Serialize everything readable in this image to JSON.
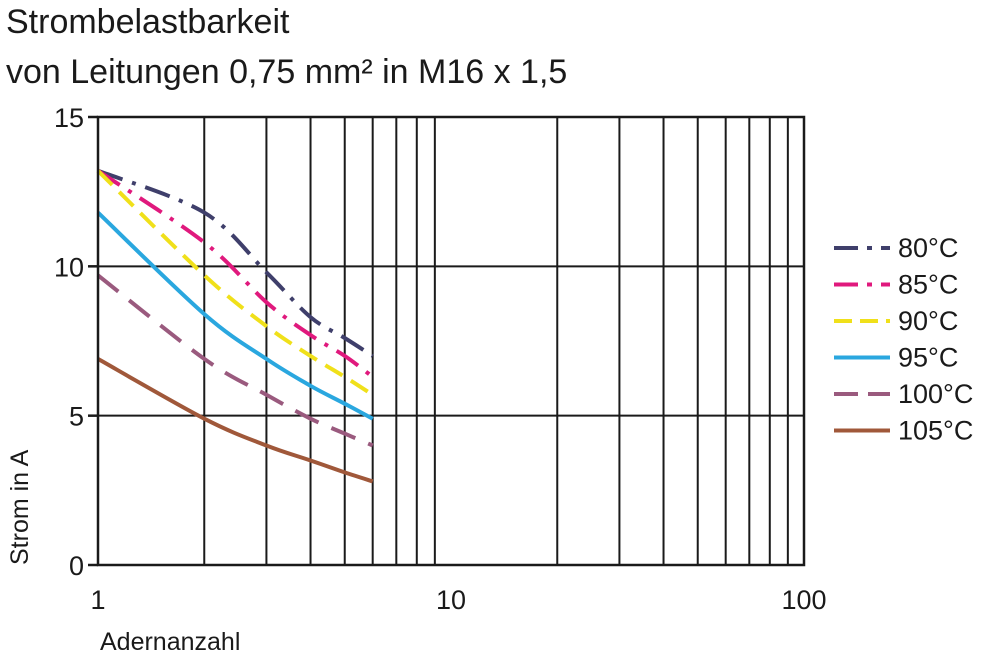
{
  "chart_data": {
    "type": "line",
    "title": "Strombelastbarkeit",
    "subtitle": "von Leitungen 0,75 mm² in M16 x 1,5",
    "xlabel": "Adernanzahl",
    "ylabel": "Strom in A",
    "xscale": "log",
    "xlim": [
      1,
      100
    ],
    "ylim": [
      0,
      15
    ],
    "xticks": [
      {
        "value": 1,
        "label": "1"
      },
      {
        "value": 10,
        "label": "10"
      },
      {
        "value": 100,
        "label": "100"
      }
    ],
    "yticks": [
      {
        "value": 0,
        "label": "0"
      },
      {
        "value": 5,
        "label": "5"
      },
      {
        "value": 10,
        "label": "10"
      },
      {
        "value": 15,
        "label": "15"
      }
    ],
    "grid": true,
    "legend_position": "right",
    "x": [
      1,
      2,
      3,
      4,
      5,
      6
    ],
    "series": [
      {
        "name": "80°C",
        "color": "#3f3f6b",
        "dash": "dash-dot",
        "values": [
          13.2,
          11.8,
          9.8,
          8.3,
          7.6,
          7.0
        ]
      },
      {
        "name": "85°C",
        "color": "#e0197d",
        "dash": "dash-dot",
        "values": [
          13.2,
          10.8,
          8.8,
          7.7,
          7.0,
          6.3
        ]
      },
      {
        "name": "90°C",
        "color": "#f0e01a",
        "dash": "dash",
        "values": [
          13.2,
          9.7,
          8.0,
          7.0,
          6.3,
          5.7
        ]
      },
      {
        "name": "95°C",
        "color": "#2aa7df",
        "dash": "solid",
        "values": [
          11.8,
          8.4,
          6.9,
          6.0,
          5.4,
          4.9
        ]
      },
      {
        "name": "100°C",
        "color": "#9a5a7e",
        "dash": "long-dash",
        "values": [
          9.7,
          6.9,
          5.7,
          4.9,
          4.4,
          4.0
        ]
      },
      {
        "name": "105°C",
        "color": "#a0583a",
        "dash": "solid",
        "values": [
          6.9,
          4.9,
          4.0,
          3.5,
          3.1,
          2.8
        ]
      }
    ]
  }
}
